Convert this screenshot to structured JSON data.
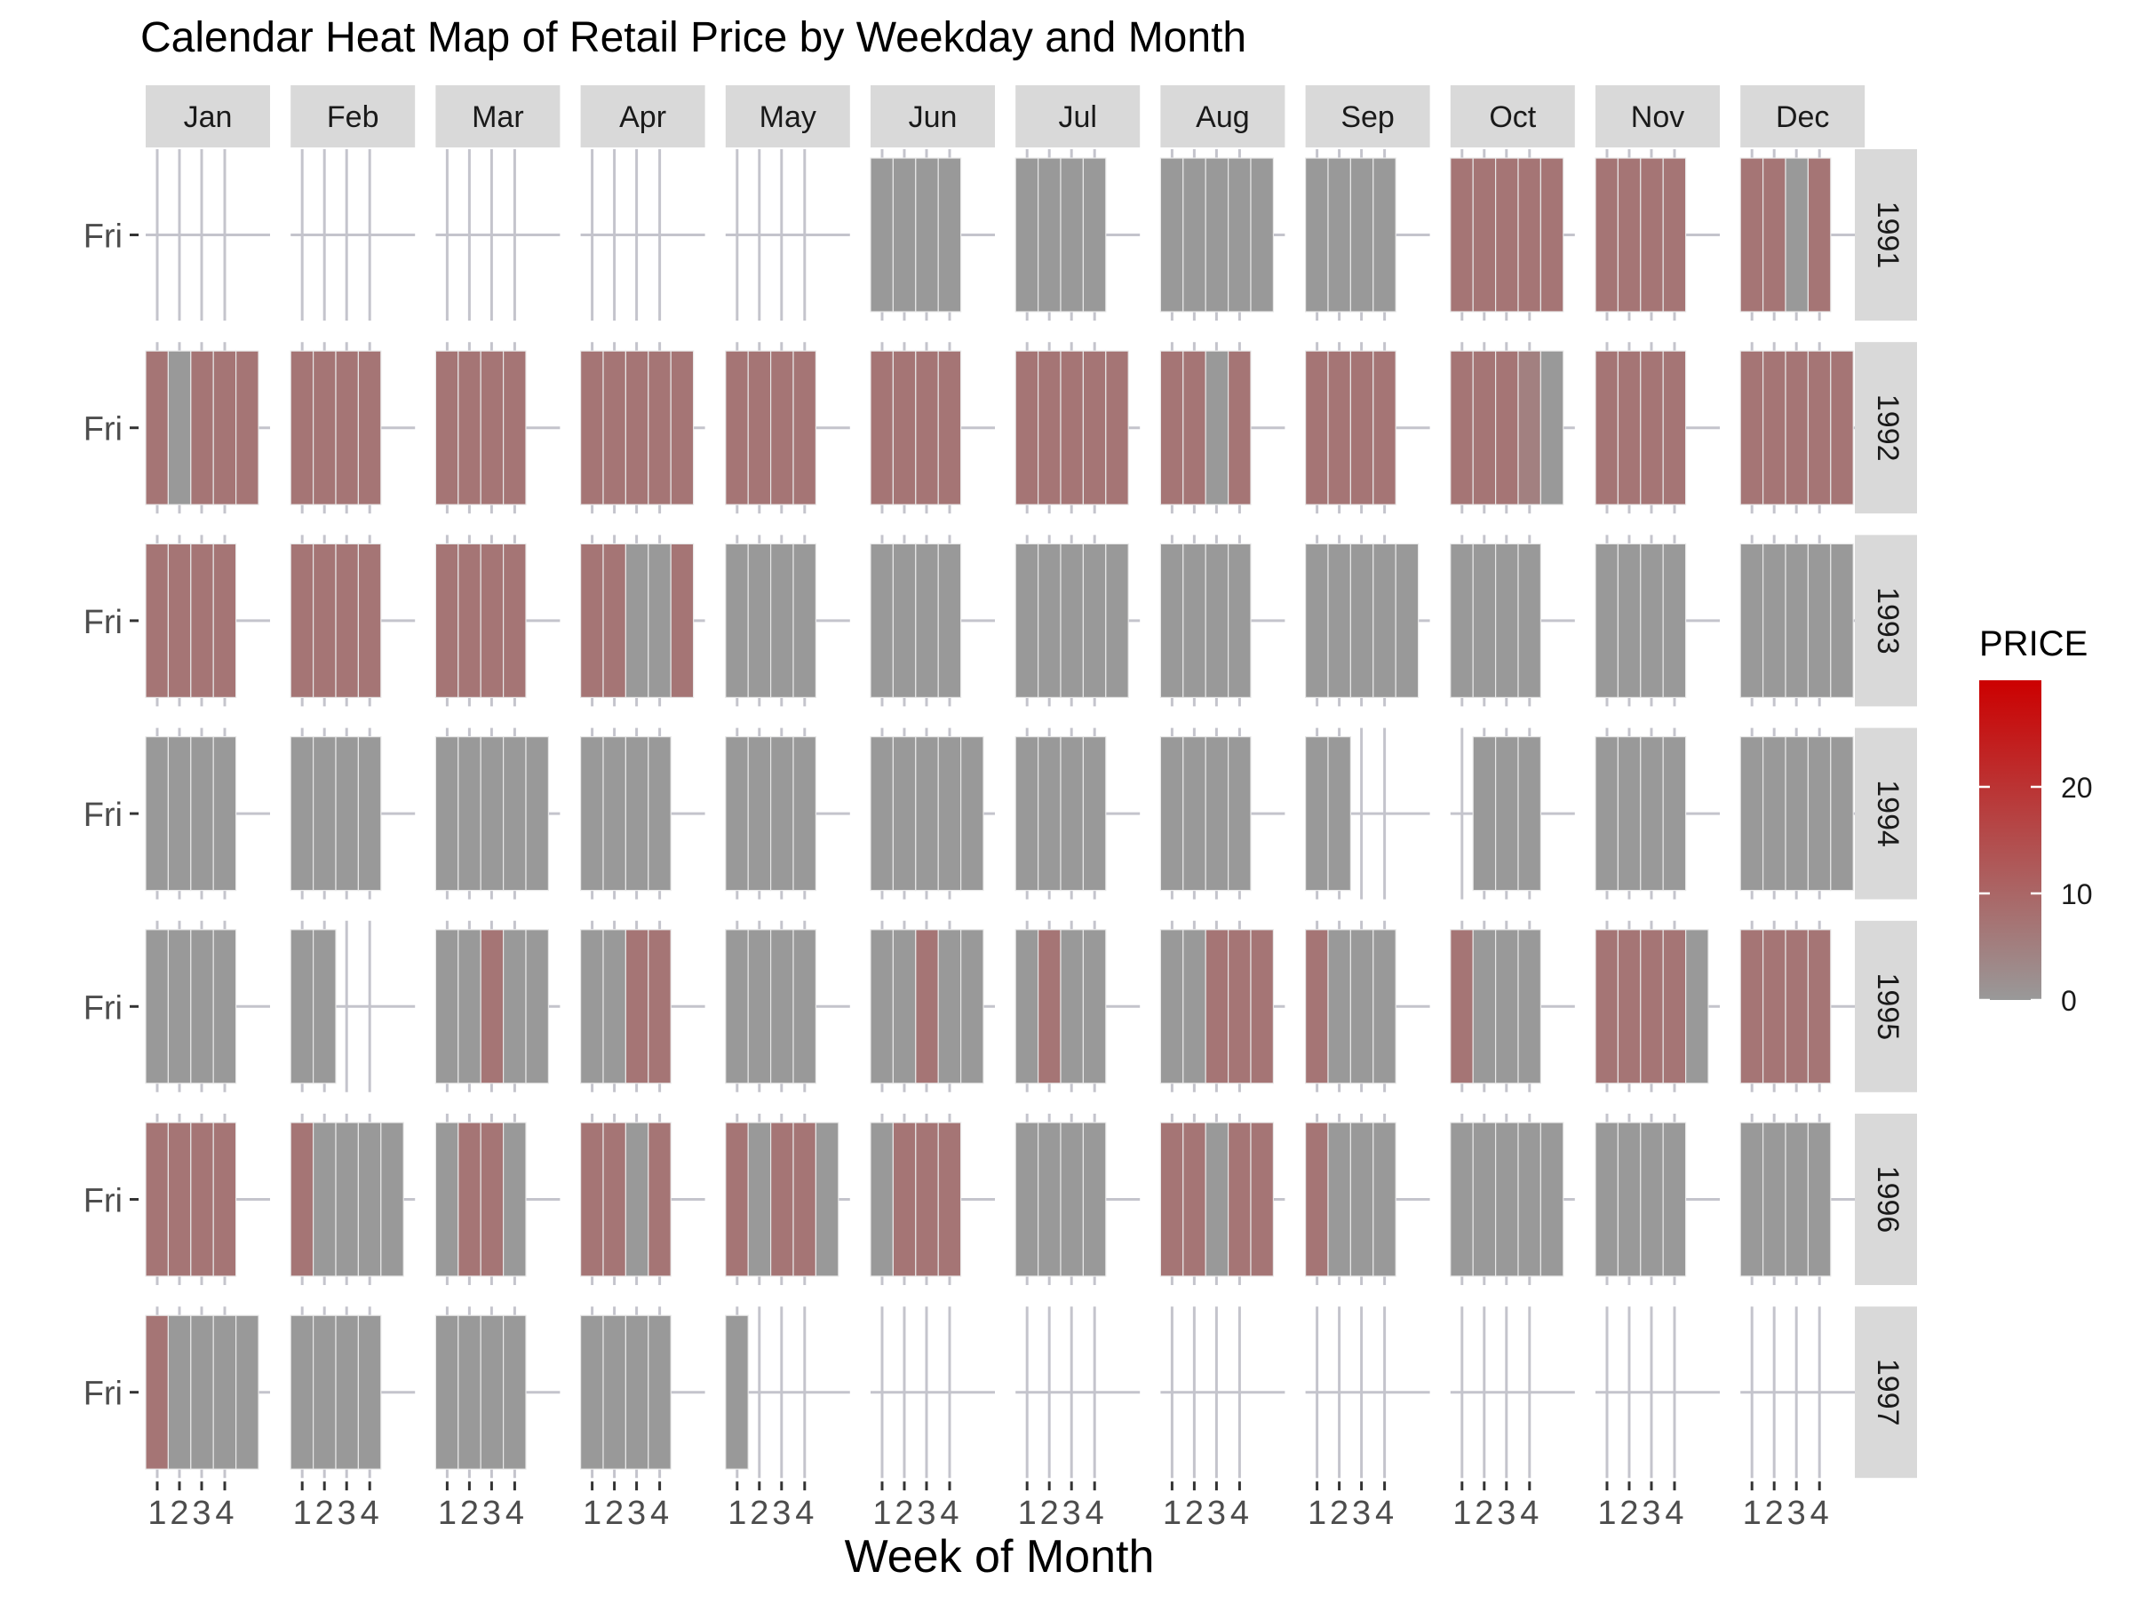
{
  "chart_data": {
    "type": "heatmap",
    "title": "Calendar Heat Map of Retail Price by Weekday and Month",
    "xlabel": "Week of Month",
    "y_tick_label": "Fri",
    "x_tick_labels": [
      "1",
      "2",
      "3",
      "4"
    ],
    "months": [
      "Jan",
      "Feb",
      "Mar",
      "Apr",
      "May",
      "Jun",
      "Jul",
      "Aug",
      "Sep",
      "Oct",
      "Nov",
      "Dec"
    ],
    "years": [
      "1991",
      "1992",
      "1993",
      "1994",
      "1995",
      "1996",
      "1997"
    ],
    "legend": {
      "title": "PRICE",
      "ticks": [
        0,
        10,
        20
      ],
      "range": [
        0,
        30
      ],
      "low_color": "#999999",
      "high_color": "#cc0000",
      "placement": "right"
    },
    "grid": true,
    "cell_values": [
      [
        [
          null,
          null,
          null,
          null,
          null
        ],
        [
          null,
          null,
          null,
          null,
          null
        ],
        [
          null,
          null,
          null,
          null,
          null
        ],
        [
          null,
          null,
          null,
          null,
          null
        ],
        [
          null,
          null,
          null,
          null,
          null
        ],
        [
          0,
          0,
          0,
          0,
          null
        ],
        [
          0,
          0,
          0,
          0,
          null
        ],
        [
          0,
          0,
          0,
          0,
          0
        ],
        [
          0,
          0,
          0,
          0,
          null
        ],
        [
          7,
          7,
          7,
          7,
          7
        ],
        [
          7,
          7,
          7,
          7,
          null
        ],
        [
          7,
          7,
          0,
          7,
          null
        ]
      ],
      [
        [
          7,
          0,
          7,
          7,
          7
        ],
        [
          7,
          7,
          7,
          7,
          null
        ],
        [
          7,
          7,
          7,
          7,
          null
        ],
        [
          7,
          7,
          7,
          7,
          7
        ],
        [
          7,
          7,
          7,
          7,
          null
        ],
        [
          7,
          7,
          7,
          7,
          null
        ],
        [
          7,
          7,
          7,
          7,
          7
        ],
        [
          7,
          7,
          0,
          7,
          null
        ],
        [
          7,
          7,
          7,
          7,
          null
        ],
        [
          7,
          7,
          7,
          5,
          0
        ],
        [
          7,
          7,
          7,
          7,
          null
        ],
        [
          7,
          7,
          7,
          7,
          7
        ]
      ],
      [
        [
          7,
          7,
          7,
          7,
          null
        ],
        [
          7,
          7,
          7,
          7,
          null
        ],
        [
          7,
          7,
          7,
          7,
          null
        ],
        [
          7,
          7,
          0,
          0,
          7
        ],
        [
          0,
          0,
          0,
          0,
          null
        ],
        [
          0,
          0,
          0,
          0,
          null
        ],
        [
          0,
          0,
          0,
          0,
          0
        ],
        [
          0,
          0,
          0,
          0,
          null
        ],
        [
          0,
          0,
          0,
          0,
          0
        ],
        [
          0,
          0,
          0,
          0,
          null
        ],
        [
          0,
          0,
          0,
          0,
          null
        ],
        [
          0,
          0,
          0,
          0,
          0
        ]
      ],
      [
        [
          0,
          0,
          0,
          0,
          null
        ],
        [
          0,
          0,
          0,
          0,
          null
        ],
        [
          0,
          0,
          0,
          0,
          0
        ],
        [
          0,
          0,
          0,
          0,
          null
        ],
        [
          0,
          0,
          0,
          0,
          null
        ],
        [
          0,
          0,
          0,
          0,
          0
        ],
        [
          0,
          0,
          0,
          0,
          null
        ],
        [
          0,
          0,
          0,
          0,
          null
        ],
        [
          0,
          0,
          null,
          null,
          null
        ],
        [
          null,
          0,
          0,
          0,
          null
        ],
        [
          0,
          0,
          0,
          0,
          null
        ],
        [
          0,
          0,
          0,
          0,
          0
        ]
      ],
      [
        [
          0,
          0,
          0,
          0,
          null
        ],
        [
          0,
          0,
          null,
          null,
          null
        ],
        [
          0,
          0,
          7,
          0,
          0
        ],
        [
          0,
          0,
          7,
          7,
          null
        ],
        [
          0,
          0,
          0,
          0,
          null
        ],
        [
          0,
          0,
          7,
          0,
          0
        ],
        [
          0,
          7,
          0,
          0,
          null
        ],
        [
          0,
          0,
          7,
          7,
          7
        ],
        [
          7,
          0,
          0,
          0,
          null
        ],
        [
          7,
          0,
          0,
          0,
          null
        ],
        [
          7,
          7,
          7,
          7,
          0
        ],
        [
          7,
          7,
          7,
          7,
          null
        ]
      ],
      [
        [
          7,
          7,
          7,
          7,
          null
        ],
        [
          7,
          0,
          0,
          0,
          0
        ],
        [
          0,
          7,
          7,
          0,
          null
        ],
        [
          7,
          7,
          0,
          7,
          null
        ],
        [
          7,
          0,
          7,
          7,
          0
        ],
        [
          0,
          7,
          7,
          7,
          null
        ],
        [
          0,
          0,
          0,
          0,
          null
        ],
        [
          7,
          7,
          0,
          7,
          7
        ],
        [
          7,
          0,
          0,
          0,
          null
        ],
        [
          0,
          0,
          0,
          0,
          0
        ],
        [
          0,
          0,
          0,
          0,
          null
        ],
        [
          0,
          0,
          0,
          0,
          null
        ]
      ],
      [
        [
          7,
          0,
          0,
          0,
          0
        ],
        [
          0,
          0,
          0,
          0,
          null
        ],
        [
          0,
          0,
          0,
          0,
          null
        ],
        [
          0,
          0,
          0,
          0,
          null
        ],
        [
          0,
          null,
          null,
          null,
          null
        ],
        [
          null,
          null,
          null,
          null,
          null
        ],
        [
          null,
          null,
          null,
          null,
          null
        ],
        [
          null,
          null,
          null,
          null,
          null
        ],
        [
          null,
          null,
          null,
          null,
          null
        ],
        [
          null,
          null,
          null,
          null,
          null
        ],
        [
          null,
          null,
          null,
          null,
          null
        ],
        [
          null,
          null,
          null,
          null,
          null
        ]
      ]
    ]
  }
}
